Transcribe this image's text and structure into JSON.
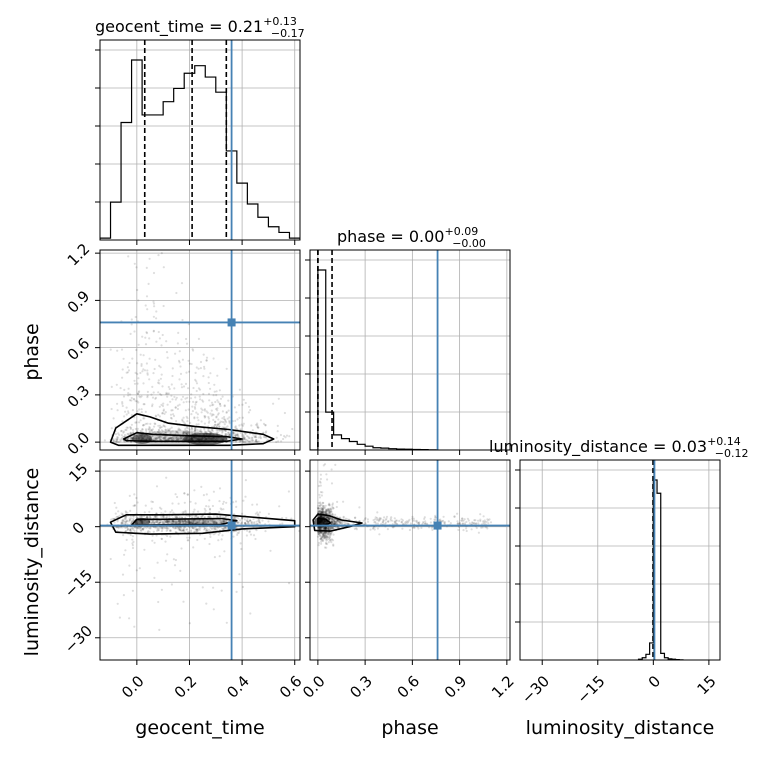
{
  "chart_data": {
    "type": "corner",
    "parameters": [
      "geocent_time",
      "phase",
      "luminosity_distance"
    ],
    "truth": {
      "geocent_time": 0.36,
      "phase": 0.76,
      "luminosity_distance": 0.3
    },
    "colors": {
      "truth": "#4682b4",
      "hist": "#000000",
      "grid": "#b0b0b0",
      "samples": "#000000"
    },
    "grid": true,
    "marginals": [
      {
        "param": "geocent_time",
        "title": {
          "prefix": "geocent_time = ",
          "median": "0.21",
          "plus": "+0.13",
          "minus": "−0.17"
        },
        "quantiles": [
          0.03,
          0.21,
          0.34
        ],
        "bin_edges": [
          -0.14,
          -0.1,
          -0.06,
          -0.02,
          0.02,
          0.06,
          0.1,
          0.14,
          0.18,
          0.22,
          0.26,
          0.3,
          0.34,
          0.38,
          0.42,
          0.46,
          0.5,
          0.54,
          0.58,
          0.62
        ],
        "counts": [
          0.01,
          0.2,
          0.62,
          0.95,
          0.66,
          0.66,
          0.73,
          0.8,
          0.88,
          0.92,
          0.86,
          0.78,
          0.47,
          0.3,
          0.19,
          0.12,
          0.07,
          0.04,
          0.01
        ]
      },
      {
        "param": "phase",
        "title": {
          "prefix": "phase = ",
          "median": "0.00",
          "plus": "+0.09",
          "minus": "−0.00"
        },
        "quantiles": [
          0.0,
          0.0,
          0.09
        ],
        "bin_edges": [
          -0.05,
          0.0,
          0.05,
          0.1,
          0.15,
          0.2,
          0.25,
          0.3,
          0.35,
          0.4,
          0.45,
          0.5,
          0.55,
          0.6,
          0.65,
          0.7,
          0.75
        ],
        "counts": [
          0.0,
          0.95,
          0.2,
          0.08,
          0.06,
          0.045,
          0.03,
          0.02,
          0.012,
          0.01,
          0.007,
          0.005,
          0.004,
          0.003,
          0.002,
          0.001
        ]
      },
      {
        "param": "luminosity_distance",
        "title": {
          "prefix": "luminosity_distance = ",
          "median": "0.03",
          "plus": "+0.14",
          "minus": "−0.12"
        },
        "quantiles": [
          -0.09,
          0.03,
          0.17
        ],
        "bin_edges": [
          -4,
          -3,
          -2,
          -1,
          0,
          1,
          2,
          3,
          4,
          5,
          6,
          7,
          8
        ],
        "counts": [
          0.004,
          0.012,
          0.03,
          0.09,
          0.95,
          0.88,
          0.035,
          0.012,
          0.006,
          0.004,
          0.002,
          0.001
        ]
      }
    ],
    "axes": {
      "geocent_time": {
        "range": [
          -0.14,
          0.62
        ],
        "ticks": [
          0.0,
          0.2,
          0.4,
          0.6
        ],
        "tick_labels": [
          "0.0",
          "0.2",
          "0.4",
          "0.6"
        ],
        "label": "geocent_time"
      },
      "phase": {
        "range": [
          -0.05,
          1.22
        ],
        "ticks": [
          0.0,
          0.3,
          0.6,
          0.9,
          1.2
        ],
        "tick_labels": [
          "0.0",
          "0.3",
          "0.6",
          "0.9",
          "1.2"
        ],
        "label": "phase"
      },
      "luminosity_distance": {
        "range": [
          -36,
          18
        ],
        "ticks": [
          -30,
          -15,
          0,
          15
        ],
        "tick_labels": [
          "−30",
          "−15",
          "0",
          "15"
        ],
        "label": "luminosity_distance"
      }
    },
    "scatter_summaries": [
      {
        "x": "geocent_time",
        "y": "phase",
        "note": "dense band near phase 0 across geocent_time -0.05..0.55, sparse plume up to ~1.2 near geocent_time 0"
      },
      {
        "x": "geocent_time",
        "y": "luminosity_distance",
        "note": "tight band near luminosity_distance 0..2 across geocent_time -0.05..0.6"
      },
      {
        "x": "phase",
        "y": "luminosity_distance",
        "note": "dense cluster near phase 0, luminosity_distance ~1, tapering right"
      }
    ]
  }
}
